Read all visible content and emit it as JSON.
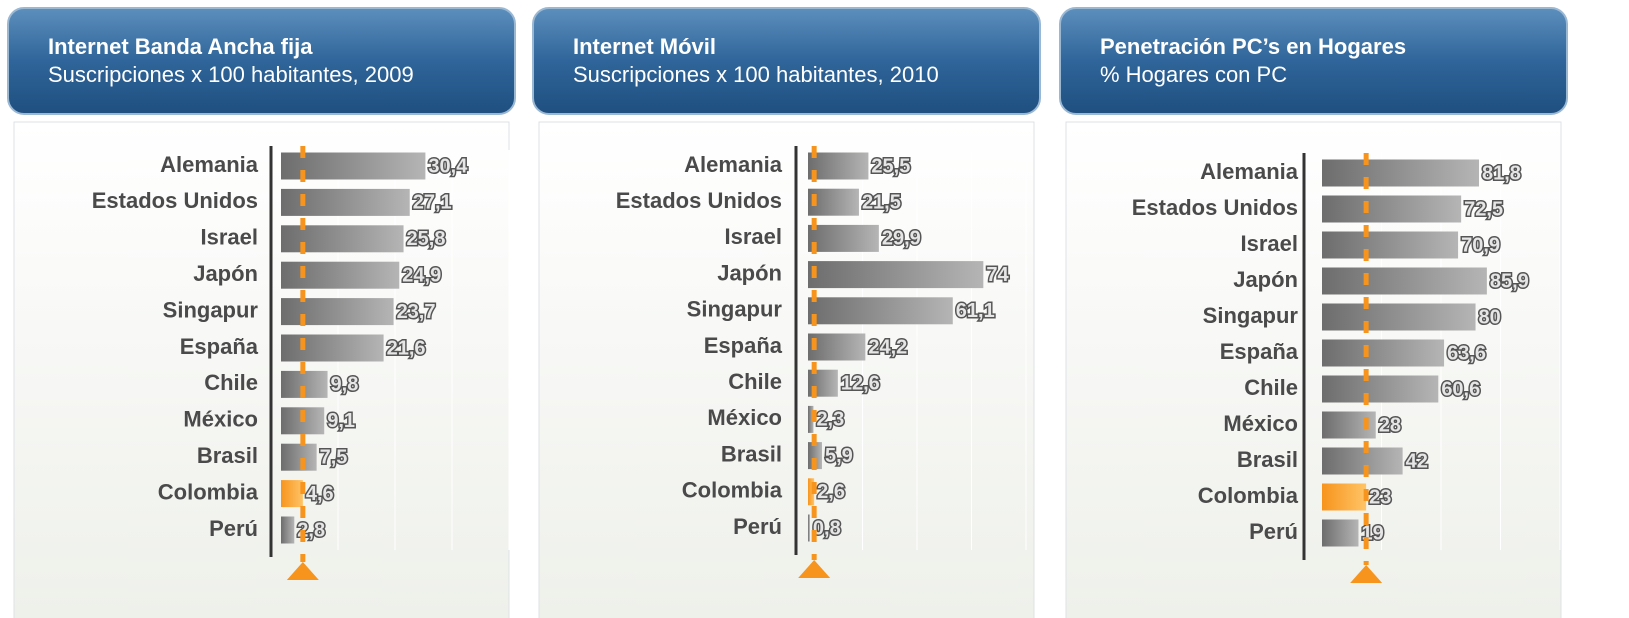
{
  "chart_data": [
    {
      "type": "bar",
      "orientation": "horizontal",
      "title": "Internet Banda Ancha fija",
      "subtitle": "Suscripciones x 100 habitantes, 2009",
      "categories": [
        "Alemania",
        "Estados Unidos",
        "Israel",
        "Japón",
        "Singapur",
        "España",
        "Chile",
        "México",
        "Brasil",
        "Colombia",
        "Perú"
      ],
      "values": [
        30.4,
        27.1,
        25.8,
        24.9,
        23.7,
        21.6,
        9.8,
        9.1,
        7.5,
        4.6,
        2.8
      ],
      "value_labels": [
        "30,4",
        "27,1",
        "25,8",
        "24,9",
        "23,7",
        "21,6",
        "9,8",
        "9,1",
        "7,5",
        "4,6",
        "2,8"
      ],
      "xlim": [
        0,
        48
      ],
      "color": "#7a7a7a",
      "highlight_index": 9,
      "highlight_color": "#f7941d"
    },
    {
      "type": "bar",
      "orientation": "horizontal",
      "title": "Internet Móvil",
      "subtitle": "Suscripciones x 100 habitantes, 2010",
      "categories": [
        "Alemania",
        "Estados Unidos",
        "Israel",
        "Japón",
        "Singapur",
        "España",
        "Chile",
        "México",
        "Brasil",
        "Colombia",
        "Perú"
      ],
      "values": [
        25.5,
        21.5,
        29.9,
        74,
        61.1,
        24.2,
        12.6,
        2.3,
        5.9,
        2.6,
        0.8
      ],
      "value_labels": [
        "25,5",
        "21,5",
        "29,9",
        "74",
        "61,1",
        "24,2",
        "12,6",
        "2,3",
        "5,9",
        "2,6",
        "0,8"
      ],
      "xlim": [
        0,
        92
      ],
      "color": "#7a7a7a",
      "highlight_index": 9,
      "highlight_color": "#f7941d"
    },
    {
      "type": "bar",
      "orientation": "horizontal",
      "title": "Penetración PC’s en Hogares",
      "subtitle": "% Hogares con PC",
      "categories": [
        "Alemania",
        "Estados Unidos",
        "Israel",
        "Japón",
        "Singapur",
        "España",
        "Chile",
        "México",
        "Brasil",
        "Colombia",
        "Perú"
      ],
      "values": [
        81.8,
        72.5,
        70.9,
        85.9,
        80,
        63.6,
        60.6,
        28,
        42,
        23,
        19
      ],
      "value_labels": [
        "81,8",
        "72,5",
        "70,9",
        "85,9",
        "80",
        "63,6",
        "60,6",
        "28",
        "42",
        "23",
        "19"
      ],
      "xlim": [
        0,
        124
      ],
      "color": "#7a7a7a",
      "highlight_index": 9,
      "highlight_color": "#f7941d"
    }
  ]
}
